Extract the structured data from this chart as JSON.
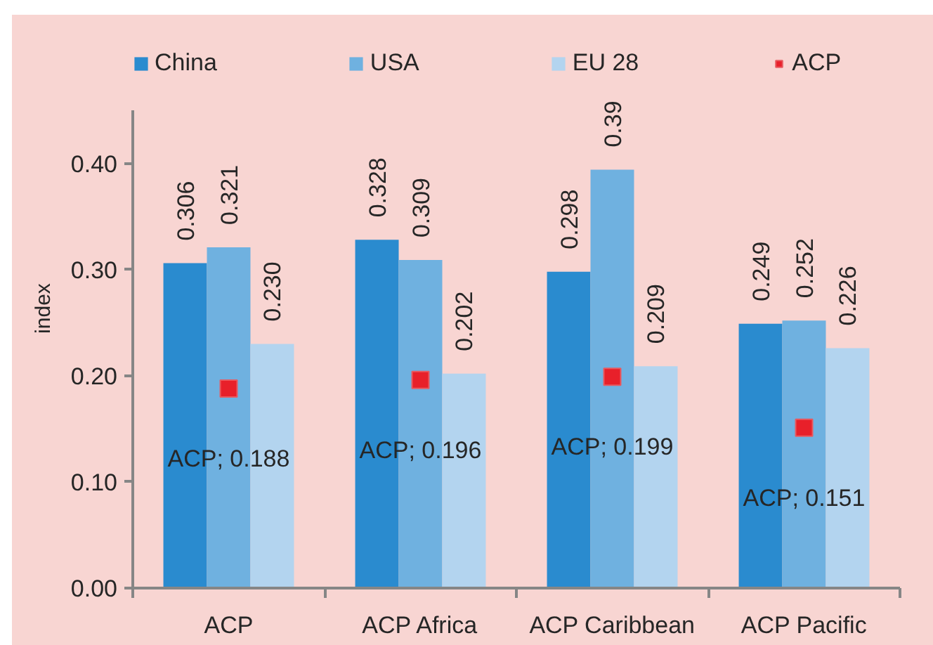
{
  "chart_data": {
    "type": "bar",
    "ylabel": "index",
    "categories": [
      "ACP",
      "ACP Africa",
      "ACP Caribbean",
      "ACP Pacific"
    ],
    "series": [
      {
        "name": "China",
        "color": "#2a8bcf",
        "values": [
          0.306,
          0.328,
          0.298,
          0.249
        ],
        "value_labels": [
          "0.306",
          "0.328",
          "0.298",
          "0.249"
        ]
      },
      {
        "name": "USA",
        "color": "#6fb1e0",
        "values": [
          0.321,
          0.309,
          0.394,
          0.252
        ],
        "value_labels": [
          "0.321",
          "0.309",
          "0.39",
          "0.252"
        ]
      },
      {
        "name": "EU 28",
        "color": "#b3d4ef",
        "values": [
          0.23,
          0.202,
          0.209,
          0.226
        ],
        "value_labels": [
          "0.230",
          "0.202",
          "0.209",
          "0.226"
        ]
      },
      {
        "name": "ACP",
        "type": "scatter",
        "marker": "square",
        "color": "#e8202a",
        "values": [
          0.188,
          0.196,
          0.199,
          0.151
        ],
        "value_labels": [
          "ACP; 0.188",
          "ACP; 0.196",
          "ACP; 0.199",
          "ACP; 0.151"
        ]
      }
    ],
    "ylim": [
      0,
      0.45
    ],
    "yticks": [
      {
        "value": 0,
        "label": "0.00"
      },
      {
        "value": 0.1,
        "label": "0.10"
      },
      {
        "value": 0.2,
        "label": "0.20"
      },
      {
        "value": 0.3,
        "label": "0.30"
      },
      {
        "value": 0.4,
        "label": "0.40"
      }
    ],
    "grid": false,
    "legend": "top"
  }
}
